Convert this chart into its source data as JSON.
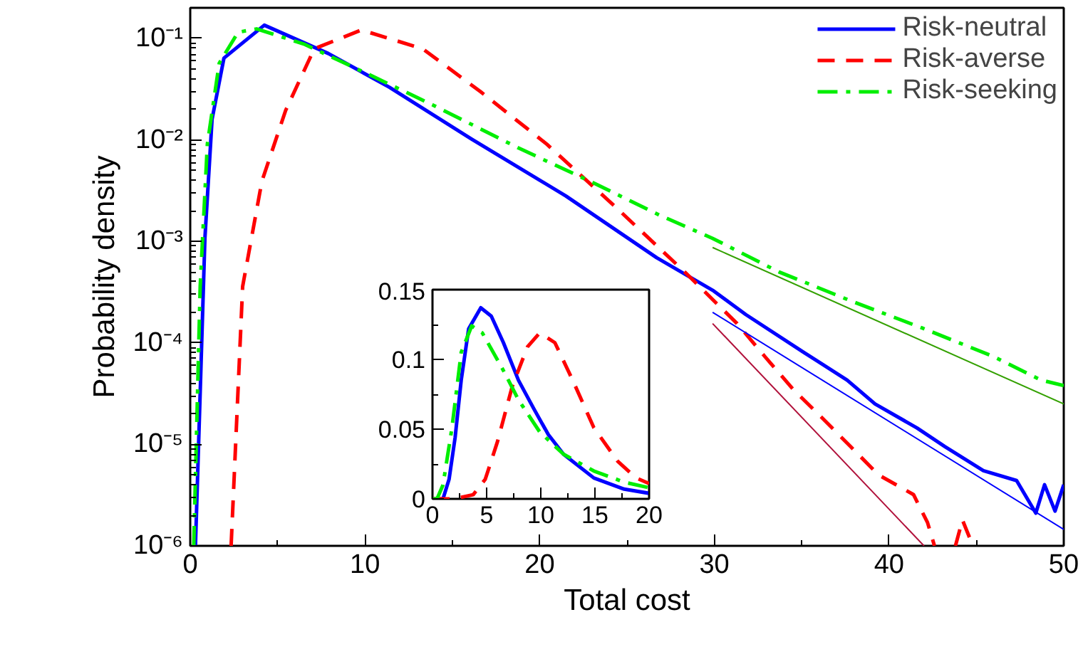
{
  "chart_data": [
    {
      "type": "line",
      "xlabel": "Total cost",
      "ylabel": "Probability density",
      "log": "y",
      "xlim": [
        0,
        50
      ],
      "ylim": [
        1e-06,
        0.2
      ],
      "xticks": [
        0,
        10,
        20,
        30,
        40,
        50
      ],
      "yticks": [
        {
          "value": 1e-06,
          "label": "10⁻⁶"
        },
        {
          "value": 1e-05,
          "label": "10⁻⁵"
        },
        {
          "value": 0.0001,
          "label": "10⁻⁴"
        },
        {
          "value": 0.001,
          "label": "10⁻³"
        },
        {
          "value": 0.01,
          "label": "10⁻²"
        },
        {
          "value": 0.1,
          "label": "10⁻¹"
        }
      ],
      "grid": false,
      "legend": "top right",
      "series": [
        {
          "name": "Risk-neutral",
          "color": "#0000ff",
          "line_style": "solid",
          "x": [
            0.3,
            0.84,
            1.25,
            1.93,
            4.24,
            7.9,
            11.4,
            16.1,
            21.5,
            26.7,
            29.9,
            31.8,
            35.1,
            37.6,
            39.2,
            41.6,
            43.2,
            45.4,
            47.3,
            48.4,
            48.9,
            49.5,
            50
          ],
          "values": [
            1e-06,
            0.00107,
            0.016,
            0.064,
            0.135,
            0.071,
            0.033,
            0.0102,
            0.0028,
            0.00069,
            0.00033,
            0.00019,
            8.1e-05,
            4.3e-05,
            2.5e-05,
            1.45e-05,
            9.5e-06,
            5.5e-06,
            4.4e-06,
            2.1e-06,
            4e-06,
            2.2e-06,
            4e-06
          ]
        },
        {
          "name": "Risk-averse",
          "color": "#ff0000",
          "line_style": "dashed",
          "x": [
            2.34,
            3.0,
            4.1,
            5.46,
            7.1,
            9.8,
            13.3,
            16.6,
            20.4,
            24.2,
            28.3,
            31.3,
            32.9,
            34.5,
            36.2,
            37.8,
            39.4,
            41.4,
            42.2,
            42.6,
            43.2,
            43.8,
            44.2,
            44.8
          ],
          "values": [
            1e-06,
            0.00036,
            0.0039,
            0.0195,
            0.079,
            0.121,
            0.079,
            0.03,
            0.0091,
            0.0023,
            0.0005,
            0.000155,
            7.3e-05,
            3.5e-05,
            1.8e-05,
            9.5e-06,
            5e-06,
            3.2e-06,
            1.7e-06,
            1e-06,
            null,
            1e-06,
            1.8e-06,
            1e-06
          ]
        },
        {
          "name": "Risk-seeking",
          "color": "#00ee00",
          "line_style": "dashdot",
          "x": [
            0.2,
            0.57,
            0.98,
            1.66,
            2.74,
            3.8,
            6.5,
            10.0,
            13.9,
            18.8,
            22.9,
            26.9,
            29.9,
            33.7,
            37.8,
            41.9,
            46.0,
            48.7,
            50
          ],
          "values": [
            1e-06,
            0.00036,
            0.0091,
            0.057,
            0.115,
            0.124,
            0.088,
            0.046,
            0.022,
            0.0083,
            0.0039,
            0.0018,
            0.00107,
            0.0005,
            0.00026,
            0.00014,
            7.3e-05,
            4.3e-05,
            3.8e-05
          ]
        },
        {
          "type": "line",
          "color": "#33a000",
          "line_style": "solid",
          "x": [
            29.9,
            50
          ],
          "values": [
            0.00087,
            2.5e-05
          ]
        },
        {
          "type": "line",
          "color": "#0000ff",
          "line_style": "solid",
          "x": [
            29.9,
            50
          ],
          "values": [
            0.0002,
            1.45e-06
          ]
        },
        {
          "type": "line",
          "color": "#b0103a",
          "line_style": "solid",
          "x": [
            29.9,
            42.0
          ],
          "values": [
            0.000155,
            1e-06
          ]
        }
      ]
    },
    {
      "type": "line",
      "xlim": [
        0,
        20
      ],
      "ylim": [
        0,
        0.15
      ],
      "xticks": [
        0,
        5,
        10,
        15,
        20
      ],
      "yticks": [
        0,
        0.05,
        0.1,
        0.15
      ],
      "grid": false,
      "legend": false,
      "series": [
        {
          "color": "#0000ff",
          "line_style": "solid",
          "x": [
            0,
            0.97,
            1.53,
            2.09,
            2.65,
            3.34,
            4.46,
            5.43,
            6.55,
            7.94,
            9.33,
            10.7,
            12.1,
            14.9,
            17.7,
            20
          ],
          "values": [
            0,
            0,
            0.014,
            0.044,
            0.085,
            0.122,
            0.137,
            0.131,
            0.112,
            0.085,
            0.065,
            0.046,
            0.032,
            0.015,
            0.007,
            0.004
          ]
        },
        {
          "color": "#ff0000",
          "line_style": "dashed",
          "x": [
            0,
            2.0,
            3.76,
            4.87,
            6.0,
            7.38,
            8.77,
            9.9,
            11.3,
            12.95,
            14.9,
            17.1,
            18.8,
            20
          ],
          "values": [
            0,
            0,
            0.003,
            0.014,
            0.041,
            0.081,
            0.109,
            0.119,
            0.112,
            0.085,
            0.051,
            0.027,
            0.015,
            0.011
          ]
        },
        {
          "color": "#00ee00",
          "line_style": "dashdot",
          "x": [
            0,
            0.42,
            0.97,
            1.8,
            2.65,
            3.62,
            4.6,
            6.55,
            7.94,
            9.9,
            12.1,
            14.9,
            17.7,
            20
          ],
          "values": [
            0,
            0,
            0.01,
            0.051,
            0.105,
            0.124,
            0.119,
            0.092,
            0.071,
            0.048,
            0.032,
            0.02,
            0.012,
            0.008
          ]
        }
      ]
    }
  ]
}
